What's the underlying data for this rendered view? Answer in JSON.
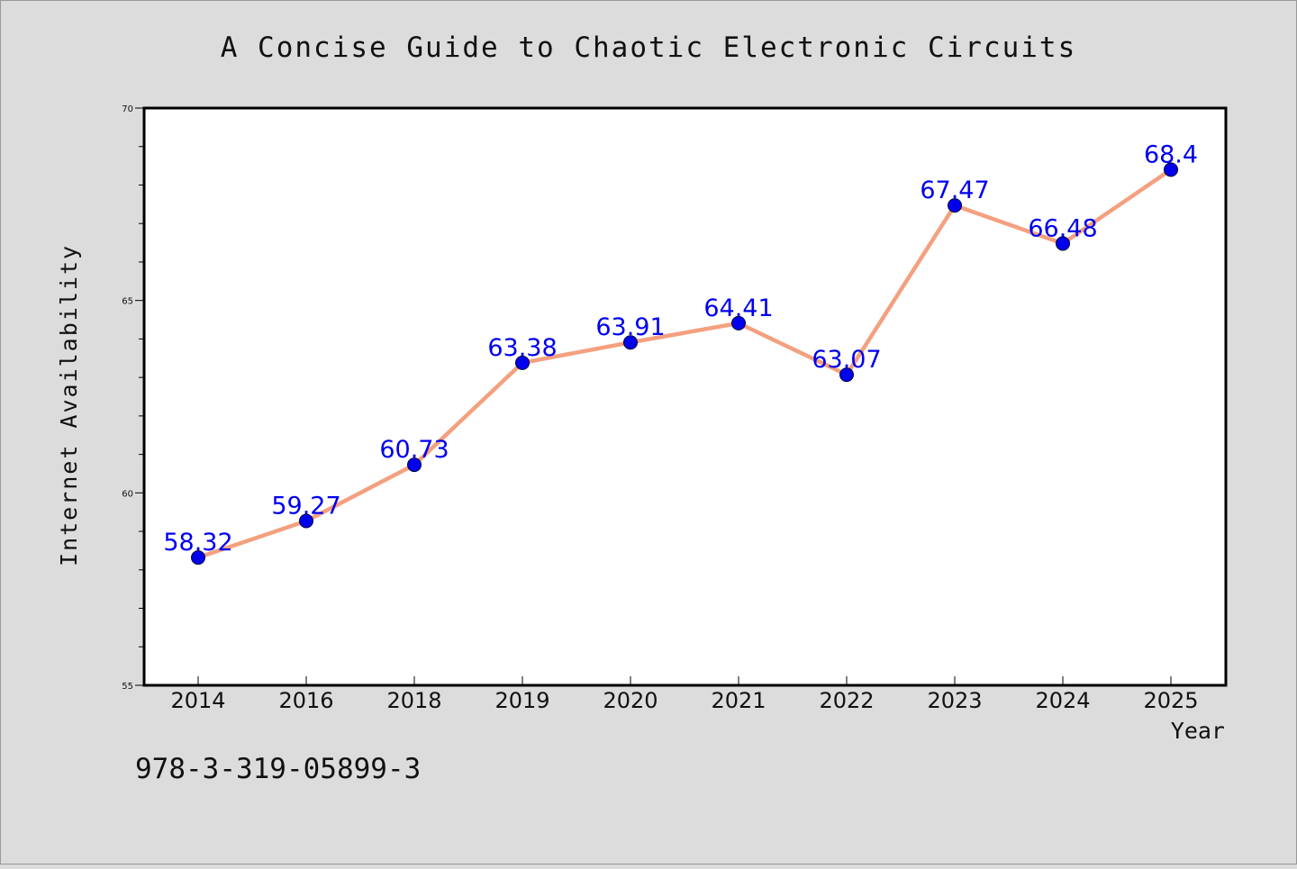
{
  "chart_data": {
    "type": "line",
    "title": "A Concise Guide to Chaotic Electronic Circuits",
    "xlabel": "Year",
    "ylabel": "Internet Availability",
    "categories": [
      "2014",
      "2016",
      "2018",
      "2019",
      "2020",
      "2021",
      "2022",
      "2023",
      "2024",
      "2025"
    ],
    "series": [
      {
        "values": [
          58.32,
          59.27,
          60.73,
          63.38,
          63.91,
          64.41,
          63.07,
          67.47,
          66.48,
          68.4
        ],
        "labels": [
          "58.32",
          "59.27",
          "60.73",
          "63.38",
          "63.91",
          "64.41",
          "63.07",
          "67.47",
          "66.48",
          "68.4"
        ],
        "line_color": "#f4a07f",
        "marker_color": "#0000ee",
        "label_color": "#0000ee"
      }
    ],
    "ylim": [
      55,
      70
    ],
    "yticks": [
      "55",
      "60",
      "65",
      "70"
    ],
    "grid": false,
    "legend": "none"
  },
  "footer": {
    "isbn": "978-3-319-05899-3"
  }
}
